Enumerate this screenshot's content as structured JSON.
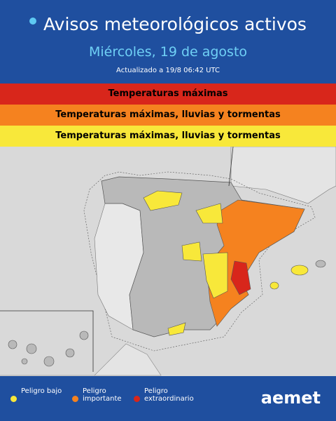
{
  "header": {
    "title": "Avisos meteorológicos activos",
    "subtitle": "Miércoles, 19 de agosto",
    "updated": "Actualizado a 19/8 06:42 UTC"
  },
  "bands": [
    {
      "label": "Temperaturas máximas",
      "color": "#d8261b"
    },
    {
      "label": "Temperaturas máximas, lluvias y tormentas",
      "color": "#f5821f"
    },
    {
      "label": "Temperaturas máximas, lluvias y tormentas",
      "color": "#f8e83a"
    }
  ],
  "legend": [
    {
      "label": "Peligro bajo",
      "color": "#f8e83a"
    },
    {
      "label": "Peligro importante",
      "color": "#f5821f"
    },
    {
      "label": "Peligro extraordinario",
      "color": "#d8261b"
    }
  ],
  "logo": "aemet"
}
